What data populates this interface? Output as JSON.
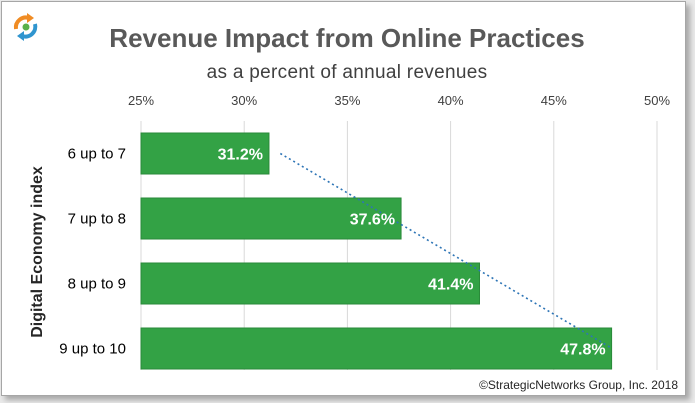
{
  "logo": {
    "icon": "recycle-arrows-icon",
    "colors": [
      "#f08c24",
      "#2f95cf",
      "#58b14a"
    ]
  },
  "credit": "©StrategicNetworks Group, Inc. 2018",
  "chart_data": {
    "type": "bar",
    "orientation": "horizontal",
    "title": "Revenue Impact from Online Practices",
    "subtitle": "as a percent of annual revenues",
    "ylabel": "Digital Economy index",
    "xlabel": "",
    "categories": [
      "6 up to 7",
      "7 up to 8",
      "8 up to 9",
      "9 up to 10"
    ],
    "values": [
      31.2,
      37.6,
      41.4,
      47.8
    ],
    "data_labels": [
      "31.2%",
      "37.6%",
      "41.4%",
      "47.8%"
    ],
    "xlim": [
      25,
      50
    ],
    "xticks": [
      25,
      30,
      35,
      40,
      45,
      50
    ],
    "xtick_labels": [
      "25%",
      "30%",
      "35%",
      "40%",
      "45%",
      "50%"
    ],
    "axis_position": "top",
    "grid": true,
    "trendline": "linear, dotted",
    "colors": {
      "bar": "#33a245",
      "bar_edge": "#2a8a3a",
      "trendline": "#2e75b6",
      "grid": "#d9d9d9"
    }
  }
}
